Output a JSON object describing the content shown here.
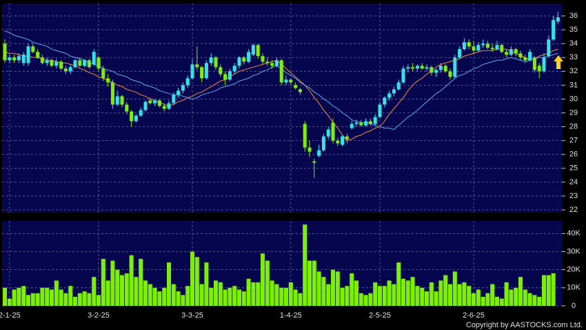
{
  "chart_data": [
    {
      "type": "candlestick",
      "up_color": "#33e3e8",
      "down_color": "#7cf000",
      "grid": true,
      "ylim": [
        21.8,
        36.9
      ],
      "yticks": [
        22,
        23,
        24,
        25,
        26,
        27,
        28,
        29,
        30,
        31,
        32,
        33,
        34,
        35,
        36
      ],
      "open": [
        34.0,
        32.8,
        33.0,
        32.8,
        32.6,
        32.6,
        33.8,
        33.4,
        33.0,
        32.6,
        32.8,
        32.4,
        32.7,
        32.2,
        32.0,
        32.3,
        32.8,
        32.4,
        32.8,
        32.5,
        33.0,
        32.2,
        31.5,
        31.2,
        29.6,
        30.2,
        29.6,
        29.1,
        28.4,
        28.8,
        29.2,
        29.9,
        29.7,
        29.9,
        29.5,
        29.3,
        29.7,
        30.3,
        30.6,
        31.0,
        31.5,
        32.5,
        32.3,
        31.5,
        32.6,
        33.0,
        32.3,
        31.8,
        31.4,
        32.0,
        32.4,
        33.0,
        32.7,
        33.2,
        33.9,
        33.1,
        32.7,
        32.6,
        32.4,
        32.8,
        31.2,
        31.4,
        31.0,
        30.7,
        28.2,
        26.5,
        25.5,
        25.9,
        26.3,
        27.3,
        28.3,
        27.0,
        26.7,
        27.3,
        27.9,
        28.2,
        28.3,
        28.1,
        28.4,
        28.2,
        28.7,
        29.6,
        30.1,
        30.4,
        30.7,
        31.2,
        32.2,
        32.3,
        32.2,
        32.4,
        32.2,
        32.3,
        31.9,
        32.1,
        32.4,
        32.0,
        31.6,
        33.0,
        33.6,
        34.1,
        33.8,
        33.5,
        33.9,
        34.0,
        33.7,
        33.6,
        33.9,
        33.4,
        33.2,
        33.6,
        33.3,
        33.0,
        32.8,
        33.0,
        32.4,
        32.0,
        33.1,
        34.3,
        35.6
      ],
      "high": [
        34.3,
        33.2,
        33.2,
        33.3,
        33.4,
        34.0,
        34.0,
        33.6,
        33.2,
        33.0,
        32.9,
        32.9,
        32.8,
        32.4,
        32.5,
        32.9,
        33.0,
        32.9,
        32.9,
        33.6,
        33.1,
        32.4,
        31.8,
        31.4,
        30.6,
        30.3,
        29.8,
        29.2,
        28.9,
        29.4,
        29.9,
        30.1,
        30.0,
        30.0,
        29.7,
        29.9,
        30.5,
        30.8,
        31.2,
        31.7,
        32.9,
        33.8,
        32.4,
        32.8,
        33.3,
        33.1,
        32.5,
        32.0,
        32.2,
        32.6,
        33.1,
        33.1,
        33.6,
        34.0,
        34.0,
        33.3,
        33.0,
        32.8,
        33.0,
        32.9,
        31.7,
        31.5,
        31.2,
        30.8,
        28.4,
        27.0,
        25.7,
        26.7,
        27.5,
        28.0,
        28.6,
        27.2,
        27.4,
        27.5,
        28.4,
        28.5,
        28.5,
        28.6,
        28.6,
        28.9,
        29.8,
        30.2,
        30.6,
        30.9,
        31.4,
        32.4,
        32.5,
        32.6,
        32.5,
        32.6,
        32.5,
        32.4,
        32.2,
        32.6,
        32.5,
        32.2,
        33.2,
        33.8,
        34.4,
        34.3,
        34.2,
        34.1,
        34.3,
        34.2,
        34.0,
        34.2,
        34.0,
        33.6,
        33.8,
        33.7,
        33.5,
        33.2,
        33.6,
        33.1,
        32.6,
        33.3,
        34.6,
        36.0,
        36.3
      ],
      "low": [
        32.6,
        32.6,
        32.6,
        32.6,
        32.4,
        32.4,
        33.3,
        32.9,
        32.5,
        32.4,
        32.3,
        32.2,
        32.1,
        31.8,
        31.8,
        32.2,
        32.3,
        32.3,
        32.2,
        32.4,
        32.0,
        31.3,
        30.9,
        29.3,
        29.5,
        29.4,
        28.9,
        28.0,
        28.3,
        28.7,
        29.1,
        29.6,
        29.5,
        29.4,
        29.1,
        29.2,
        29.6,
        30.1,
        30.4,
        30.8,
        31.4,
        32.1,
        31.2,
        31.4,
        32.4,
        32.1,
        31.6,
        31.0,
        31.3,
        31.8,
        32.2,
        32.5,
        32.6,
        33.1,
        32.9,
        32.5,
        32.4,
        32.2,
        32.3,
        31.0,
        31.0,
        31.0,
        30.7,
        30.3,
        26.2,
        25.8,
        24.3,
        25.8,
        26.2,
        27.1,
        26.8,
        26.6,
        26.6,
        26.8,
        27.8,
        28.0,
        28.0,
        28.0,
        28.1,
        28.1,
        28.6,
        29.4,
        29.9,
        30.2,
        30.6,
        31.1,
        31.9,
        32.0,
        32.0,
        32.1,
        32.0,
        31.7,
        31.6,
        31.9,
        31.9,
        31.4,
        31.5,
        32.9,
        33.5,
        33.6,
        33.3,
        33.4,
        33.7,
        33.6,
        33.4,
        33.5,
        33.3,
        33.0,
        33.1,
        33.1,
        32.8,
        32.6,
        32.7,
        31.9,
        31.5,
        31.9,
        33.0,
        34.2,
        35.4
      ],
      "close": [
        32.8,
        33.0,
        32.8,
        33.1,
        33.2,
        33.8,
        33.4,
        33.0,
        32.6,
        32.8,
        32.4,
        32.7,
        32.2,
        32.0,
        32.3,
        32.8,
        32.4,
        32.8,
        32.3,
        33.4,
        32.2,
        31.5,
        31.2,
        29.6,
        30.2,
        29.6,
        29.1,
        28.4,
        28.8,
        29.2,
        29.8,
        29.7,
        29.9,
        29.5,
        29.3,
        29.7,
        30.3,
        30.6,
        31.0,
        31.5,
        32.5,
        32.3,
        31.5,
        32.6,
        33.0,
        32.3,
        31.8,
        31.4,
        32.0,
        32.4,
        33.0,
        32.7,
        33.4,
        33.9,
        33.1,
        32.7,
        32.6,
        32.4,
        32.8,
        31.2,
        31.4,
        31.2,
        30.8,
        30.5,
        26.5,
        26.2,
        25.4,
        26.3,
        27.3,
        27.8,
        27.0,
        26.8,
        27.3,
        27.1,
        28.2,
        28.3,
        28.1,
        28.4,
        28.2,
        28.7,
        29.6,
        30.1,
        30.4,
        30.7,
        31.2,
        32.2,
        32.3,
        32.2,
        32.4,
        32.2,
        32.3,
        31.9,
        32.1,
        32.4,
        32.0,
        31.6,
        33.0,
        33.6,
        34.1,
        33.8,
        33.5,
        33.9,
        34.0,
        33.7,
        33.6,
        33.9,
        33.4,
        33.2,
        33.6,
        33.3,
        33.0,
        32.8,
        33.4,
        32.1,
        32.0,
        33.0,
        34.3,
        35.7,
        35.9
      ],
      "series": [
        {
          "color": "#f0903a",
          "values": [
            33.4,
            33.3,
            33.3,
            33.2,
            33.1,
            33.1,
            33.0,
            33.0,
            32.9,
            32.8,
            32.8,
            32.7,
            32.6,
            32.6,
            32.5,
            32.4,
            32.2,
            32.1,
            31.9,
            31.8,
            31.6,
            31.5,
            31.3,
            31.2,
            31.0,
            30.9,
            30.7,
            30.6,
            30.5,
            30.3,
            30.2,
            30.0,
            29.9,
            29.8,
            29.6,
            29.5,
            29.6,
            29.8,
            29.9,
            30.1,
            30.2,
            30.4,
            30.5,
            30.7,
            30.9,
            31.1,
            31.3,
            31.4,
            31.6,
            31.8,
            32.0,
            32.1,
            32.2,
            32.3,
            32.4,
            32.5,
            32.6,
            32.7,
            32.8,
            32.5,
            32.2,
            31.9,
            31.6,
            31.3,
            31.0,
            30.6,
            30.1,
            29.7,
            29.2,
            28.8,
            28.3,
            27.9,
            27.4,
            27.0,
            27.1,
            27.3,
            27.4,
            27.6,
            27.7,
            27.9,
            28.0,
            28.4,
            28.9,
            29.3,
            29.7,
            30.1,
            30.6,
            31.0,
            31.3,
            31.5,
            31.8,
            32.0,
            32.3,
            32.5,
            32.6,
            32.7,
            32.8,
            32.9,
            33.1,
            33.2,
            33.3,
            33.4,
            33.5,
            33.5,
            33.5,
            33.6,
            33.6,
            33.6,
            33.4,
            33.3,
            33.1,
            33.0,
            32.8,
            32.9,
            33.1,
            33.2,
            33.3,
            33.5,
            33.6
          ]
        },
        {
          "color": "#5aaef0",
          "values": [
            34.9,
            34.8,
            34.6,
            34.5,
            34.4,
            34.3,
            34.1,
            34.0,
            33.9,
            33.8,
            33.6,
            33.5,
            33.4,
            33.3,
            33.1,
            33.0,
            32.9,
            32.8,
            32.6,
            32.5,
            32.4,
            32.2,
            32.1,
            32.0,
            31.8,
            31.7,
            31.6,
            31.4,
            31.3,
            31.2,
            31.0,
            30.9,
            30.8,
            30.6,
            30.5,
            30.4,
            30.3,
            30.3,
            30.2,
            30.1,
            30.0,
            30.1,
            30.3,
            30.4,
            30.5,
            30.6,
            30.8,
            30.9,
            31.0,
            31.1,
            31.3,
            31.4,
            31.5,
            31.7,
            31.8,
            32.0,
            32.1,
            32.3,
            32.4,
            32.2,
            31.9,
            31.7,
            31.5,
            31.2,
            31.0,
            30.8,
            30.5,
            30.3,
            30.0,
            29.8,
            29.5,
            29.3,
            29.0,
            28.8,
            28.5,
            28.4,
            28.3,
            28.3,
            28.2,
            28.1,
            28.0,
            27.9,
            27.9,
            27.8,
            28.1,
            28.4,
            28.7,
            28.9,
            29.2,
            29.5,
            29.8,
            30.1,
            30.4,
            30.6,
            30.9,
            31.2,
            31.5,
            31.7,
            31.8,
            32.0,
            32.2,
            32.3,
            32.5,
            32.6,
            32.7,
            32.8,
            32.8,
            32.9,
            33.0,
            32.9,
            32.8,
            32.7,
            32.8,
            32.9,
            33.0,
            33.0,
            33.1,
            33.2,
            33.3
          ]
        }
      ]
    },
    {
      "type": "bar",
      "color": "#7cf000",
      "grid": true,
      "ylim": [
        0,
        47000
      ],
      "yticks": [
        0,
        {
          "value": 10000,
          "label": "10K"
        },
        {
          "value": 20000,
          "label": "20K"
        },
        {
          "value": 30000,
          "label": "30K"
        },
        {
          "value": 40000,
          "label": "40K"
        }
      ],
      "categories": [
        null,
        "2-1-25",
        null,
        null,
        null,
        null,
        null,
        null,
        null,
        null,
        null,
        null,
        null,
        null,
        null,
        null,
        null,
        null,
        null,
        null,
        "3-2-25",
        null,
        null,
        null,
        null,
        null,
        null,
        null,
        null,
        null,
        null,
        null,
        null,
        null,
        null,
        null,
        null,
        null,
        null,
        null,
        "3-3-25",
        null,
        null,
        null,
        null,
        null,
        null,
        null,
        null,
        null,
        null,
        null,
        null,
        null,
        null,
        null,
        null,
        null,
        null,
        null,
        null,
        "1-4-25",
        null,
        null,
        null,
        null,
        null,
        null,
        null,
        null,
        null,
        null,
        null,
        null,
        null,
        null,
        null,
        null,
        null,
        null,
        "2-5-25",
        null,
        null,
        null,
        null,
        null,
        null,
        null,
        null,
        null,
        null,
        null,
        null,
        null,
        null,
        null,
        null,
        null,
        null,
        null,
        "2-6-25",
        null,
        null,
        null,
        null,
        null,
        null,
        null,
        null,
        null,
        null,
        null,
        null,
        null,
        null,
        null,
        null,
        null
      ],
      "values": [
        10000,
        4000,
        9000,
        10000,
        11000,
        6000,
        7000,
        7000,
        10000,
        10000,
        9000,
        14000,
        9000,
        7000,
        11000,
        5000,
        7000,
        8000,
        7000,
        16000,
        6000,
        26000,
        14000,
        25000,
        20000,
        17000,
        18000,
        28000,
        16000,
        26000,
        14000,
        12000,
        10000,
        8000,
        10000,
        24000,
        12000,
        8000,
        6000,
        11000,
        30000,
        27000,
        12000,
        24000,
        10000,
        14000,
        13000,
        9000,
        10000,
        11000,
        9000,
        8000,
        15000,
        13000,
        13000,
        29000,
        25000,
        14000,
        12000,
        10000,
        10000,
        13000,
        9000,
        7000,
        45000,
        25000,
        25000,
        19000,
        16000,
        12000,
        20000,
        19000,
        10000,
        11000,
        18000,
        14000,
        7000,
        6000,
        7000,
        13000,
        11000,
        11000,
        14000,
        12000,
        24000,
        15000,
        14000,
        16000,
        11000,
        10000,
        8000,
        13000,
        8000,
        14000,
        17000,
        12000,
        19000,
        12000,
        13000,
        11000,
        7000,
        9000,
        5000,
        7000,
        12000,
        5000,
        4000,
        13000,
        9000,
        10000,
        16000,
        9000,
        7000,
        6000,
        5000,
        17000,
        17000,
        18000
      ],
      "footer": "Copyright by AASTOCKS.com Ltd."
    }
  ]
}
